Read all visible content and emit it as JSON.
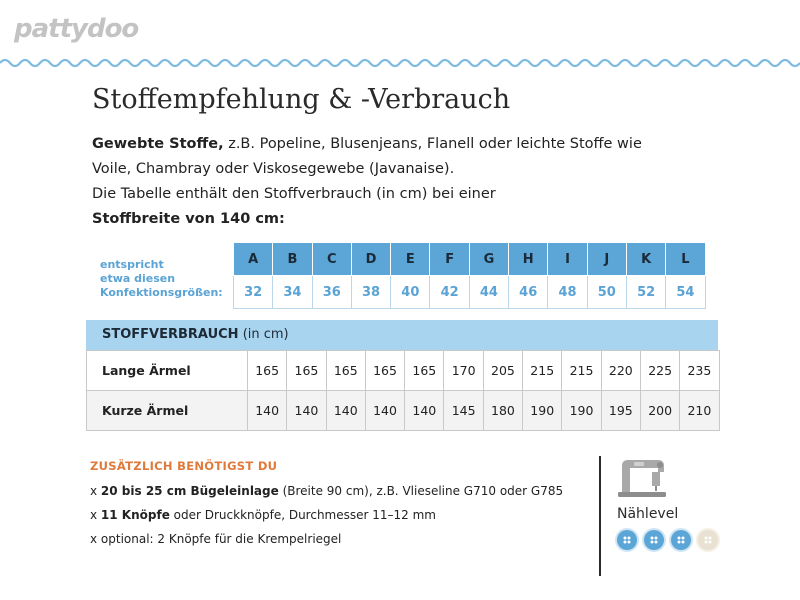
{
  "logo": "pattydoo",
  "title": "Stoffempfehlung & -Verbrauch",
  "intro": {
    "line1_bold": "Gewebte Stoffe,",
    "line1_rest": " z.B. Popeline, Blusenjeans, Flanell oder leichte Stoffe wie",
    "line2": "Voile, Chambray oder Viskosegewebe (Javanaise).",
    "line3": "Die Tabelle enthält den Stoffverbrauch (in cm) bei einer",
    "line4_bold": "Stoffbreite von 140 cm:"
  },
  "sizes": {
    "label_lines": [
      "entspricht",
      "etwa diesen",
      "Konfektionsgrößen:"
    ],
    "letters": [
      "A",
      "B",
      "C",
      "D",
      "E",
      "F",
      "G",
      "H",
      "I",
      "J",
      "K",
      "L"
    ],
    "numbers": [
      "32",
      "34",
      "36",
      "38",
      "40",
      "42",
      "44",
      "46",
      "48",
      "50",
      "52",
      "54"
    ]
  },
  "consumption": {
    "header_bold": "STOFFVERBRAUCH",
    "header_rest": " (in cm)",
    "rows": [
      {
        "label": "Lange Ärmel",
        "values": [
          "165",
          "165",
          "165",
          "165",
          "165",
          "170",
          "205",
          "215",
          "215",
          "220",
          "225",
          "235"
        ]
      },
      {
        "label": "Kurze Ärmel",
        "values": [
          "140",
          "140",
          "140",
          "140",
          "140",
          "145",
          "180",
          "190",
          "190",
          "195",
          "200",
          "210"
        ]
      }
    ]
  },
  "extras": {
    "title": "ZUSÄTZLICH BENÖTIGST DU",
    "items": [
      {
        "prefix": "x ",
        "bold": "20 bis 25 cm Bügeleinlage",
        "rest": " (Breite 90 cm), z.B. Vlieseline G710 oder G785"
      },
      {
        "prefix": "x ",
        "bold": "11 Knöpfe",
        "rest": " oder Druckknöpfe, Durchmesser 11–12 mm"
      },
      {
        "prefix": "x ",
        "bold": "",
        "rest": "optional: 2 Knöpfe für die Krempelriegel"
      }
    ]
  },
  "level": {
    "label": "Nählevel",
    "value": 3,
    "max": 4,
    "colors": {
      "filled": "#5ba6d6",
      "empty": "#e9e2d2"
    }
  }
}
